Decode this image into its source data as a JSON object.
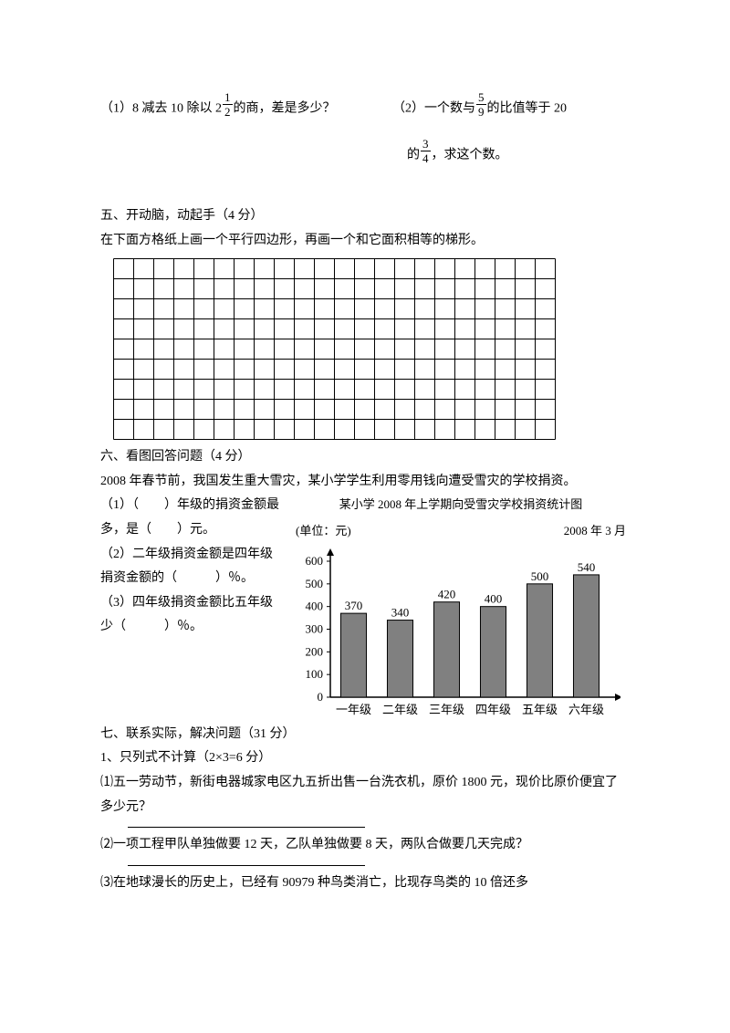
{
  "q_top": {
    "p1_a": "（1）8 减去 10 除以 2",
    "p1_frac_num": "1",
    "p1_frac_den": "2",
    "p1_b": "的商，差是多少？",
    "p2_a": "（2）一个数与",
    "p2_frac1_num": "5",
    "p2_frac1_den": "9",
    "p2_b": "的比值等于 20",
    "p2_c": "的",
    "p2_frac2_num": "3",
    "p2_frac2_den": "4",
    "p2_d": "，求这个数。"
  },
  "sec5": {
    "title": "五、开动脑，动起手（4 分）",
    "desc": "在下面方格纸上画一个平行四边形，再画一个和它面积相等的梯形。",
    "grid": {
      "cols": 22,
      "rows": 9,
      "cell": 22,
      "stroke": "#000000"
    }
  },
  "sec6": {
    "title": "六、看图回答问题（4 分）",
    "intro": "2008 年春节前，我国发生重大雪灾，某小学学生利用零用钱向遭受雪灾的学校捐资。",
    "q1": "（1）（　　）年级的捐资金额最多，是（　　）元。",
    "q2": "（2）二年级捐资金额是四年级捐资金额的（　　　）％。",
    "q3": "（3）四年级捐资金额比五年级少（　　　）％。",
    "chart": {
      "title": "某小学 2008 年上学期向受雪灾学校捐资统计图",
      "unit_label": "(单位：元)",
      "date_label": "2008 年 3 月",
      "type": "bar",
      "categories": [
        "一年级",
        "二年级",
        "三年级",
        "四年级",
        "五年级",
        "六年级"
      ],
      "values": [
        370,
        340,
        420,
        400,
        500,
        540
      ],
      "ylim": [
        0,
        600
      ],
      "ytick_step": 100,
      "bar_fill": "#808080",
      "bar_stroke": "#000000",
      "axis_color": "#000000",
      "value_label_fontsize": 13,
      "axis_label_fontsize": 13
    }
  },
  "sec7": {
    "title": "七、联系实际，解决问题（31 分）",
    "sub1_title": "1、只列式不计算（2×3=6 分）",
    "q1": "⑴五一劳动节，新街电器城家电区九五折出售一台洗衣机，原价 1800 元，现价比原价便宜了多少元？",
    "q2": "⑵一项工程甲队单独做要 12 天，乙队单独做要 8 天，两队合做要几天完成？",
    "q3": "⑶在地球漫长的历史上，已经有 90979 种鸟类消亡，比现存鸟类的 10 倍还多"
  }
}
